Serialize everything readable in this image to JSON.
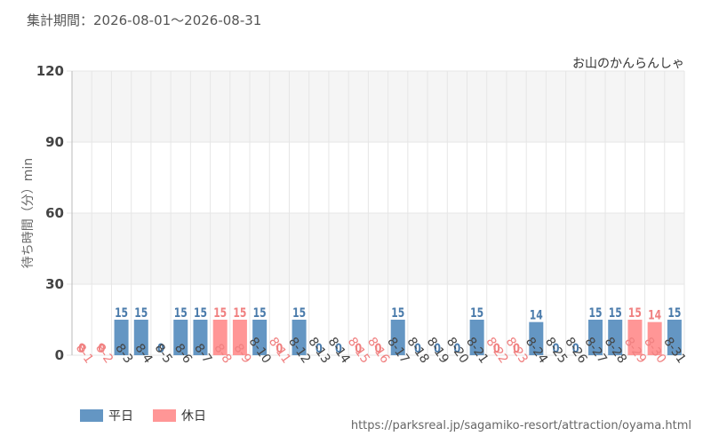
{
  "header": {
    "period_label": "集計期間：2026-08-01～2026-08-31",
    "attraction_name": "お山のかんらんしゃ",
    "source_url": "https://parksreal.jp/sagamiko-resort/attraction/oyama.html"
  },
  "legend": {
    "weekday_label": "平日",
    "holiday_label": "休日"
  },
  "colors": {
    "weekday": "#6496c3",
    "holiday": "#ff9696",
    "weekday_text": "#4a7bab",
    "holiday_text": "#f08080",
    "plot_band": "#f5f5f5",
    "grid": "#e6e6e6"
  },
  "chart_data": {
    "type": "bar",
    "ylabel": "待ち時間（分）min",
    "ylim": [
      0,
      120
    ],
    "yticks": [
      0,
      30,
      60,
      90,
      120
    ],
    "categories": [
      "8-1",
      "8-2",
      "8-3",
      "8-4",
      "8-5",
      "8-6",
      "8-7",
      "8-8",
      "8-9",
      "8-10",
      "8-11",
      "8-12",
      "8-13",
      "8-14",
      "8-15",
      "8-16",
      "8-17",
      "8-18",
      "8-19",
      "8-20",
      "8-21",
      "8-22",
      "8-23",
      "8-24",
      "8-25",
      "8-26",
      "8-27",
      "8-28",
      "8-29",
      "8-30",
      "8-31"
    ],
    "values": [
      0,
      0,
      15,
      15,
      0,
      15,
      15,
      15,
      15,
      15,
      0,
      15,
      0,
      0,
      0,
      0,
      15,
      0,
      0,
      0,
      15,
      0,
      0,
      14,
      0,
      0,
      15,
      15,
      15,
      14,
      15
    ],
    "day_type": [
      "holiday",
      "holiday",
      "weekday",
      "weekday",
      "weekday",
      "weekday",
      "weekday",
      "holiday",
      "holiday",
      "weekday",
      "holiday",
      "weekday",
      "weekday",
      "weekday",
      "holiday",
      "holiday",
      "weekday",
      "weekday",
      "weekday",
      "weekday",
      "weekday",
      "holiday",
      "holiday",
      "weekday",
      "weekday",
      "weekday",
      "weekday",
      "weekday",
      "holiday",
      "holiday",
      "weekday"
    ],
    "grid": true,
    "legend_position": "bottom-left"
  }
}
